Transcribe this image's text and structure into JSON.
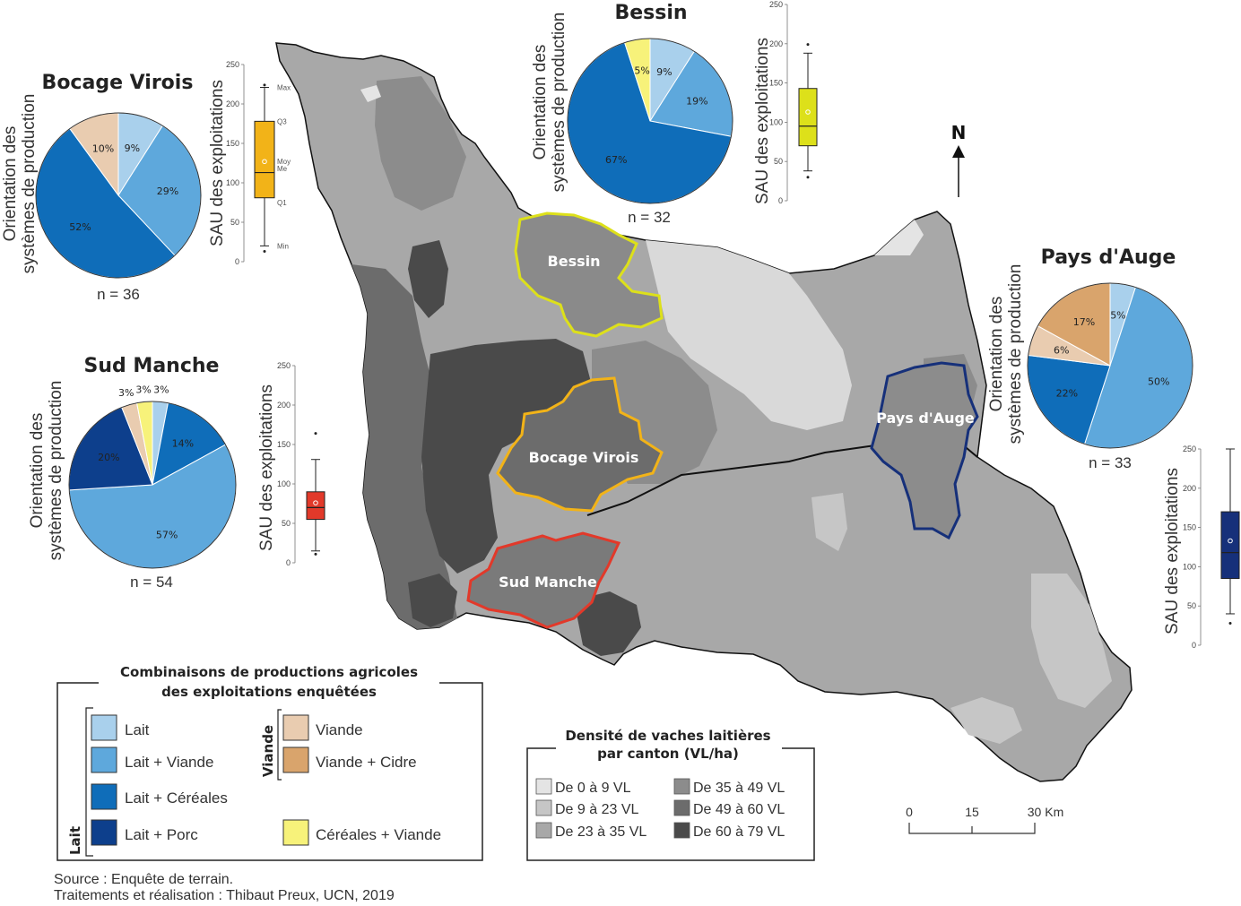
{
  "colors": {
    "lait": "#a9d0ec",
    "lait_viande": "#5ea8dc",
    "lait_cereales": "#0f6db9",
    "lait_porc": "#0d3f8c",
    "viande": "#e9ccb0",
    "viande_cidre": "#d9a46c",
    "cereales_viande": "#f7f27a",
    "dens_0_9": "#e4e4e4",
    "dens_9_23": "#c6c6c6",
    "dens_23_35": "#a8a8a8",
    "dens_35_49": "#8c8c8c",
    "dens_49_60": "#6c6c6c",
    "dens_60_79": "#4a4a4a"
  },
  "pie_axis_label_line1": "Orientation des",
  "pie_axis_label_line2": "systèmes de production",
  "box_axis_label": "SAU des exploitations",
  "box_ticks": [
    "0",
    "50",
    "100",
    "150",
    "200",
    "250"
  ],
  "box_stat_labels": {
    "max": "Max",
    "q3": "Q3",
    "moy": "Moy",
    "me": "Me",
    "q1": "Q1",
    "min": "Min"
  },
  "regions": {
    "bocage": {
      "title": "Bocage Virois",
      "n": "n = 36",
      "map_label": "Bocage Virois",
      "pie": [
        {
          "cat": "lait",
          "pct": 9,
          "label": "9%"
        },
        {
          "cat": "lait_viande",
          "pct": 29,
          "label": "29%"
        },
        {
          "cat": "lait_cereales",
          "pct": 52,
          "label": "52%"
        },
        {
          "cat": "viande",
          "pct": 10,
          "label": "10%"
        }
      ],
      "box": {
        "min": 20,
        "q1": 81,
        "median": 113,
        "mean": 127,
        "q3": 178,
        "max": 221,
        "outliers": [
          13,
          224
        ],
        "color": "#f2b318"
      }
    },
    "bessin": {
      "title": "Bessin",
      "n": "n = 32",
      "map_label": "Bessin",
      "pie": [
        {
          "cat": "lait",
          "pct": 9,
          "label": "9%"
        },
        {
          "cat": "lait_viande",
          "pct": 19,
          "label": "19%"
        },
        {
          "cat": "lait_cereales",
          "pct": 67,
          "label": "67%"
        },
        {
          "cat": "cereales_viande",
          "pct": 5,
          "label": "5%"
        }
      ],
      "box": {
        "min": 38,
        "q1": 70,
        "median": 95,
        "mean": 113,
        "q3": 143,
        "max": 188,
        "outliers": [
          30,
          199
        ],
        "color": "#dde01a"
      }
    },
    "sudmanche": {
      "title": "Sud Manche",
      "n": "n = 54",
      "map_label": "Sud Manche",
      "pie": [
        {
          "cat": "lait",
          "pct": 3,
          "label": "3%"
        },
        {
          "cat": "lait_cereales",
          "pct": 14,
          "label": "14%"
        },
        {
          "cat": "lait_viande",
          "pct": 57,
          "label": "57%"
        },
        {
          "cat": "lait_porc",
          "pct": 20,
          "label": "20%"
        },
        {
          "cat": "viande",
          "pct": 3,
          "label": "3%"
        },
        {
          "cat": "cereales_viande",
          "pct": 3,
          "label": "3%"
        }
      ],
      "box": {
        "min": 15,
        "q1": 55,
        "median": 70,
        "mean": 76,
        "q3": 90,
        "max": 131,
        "outliers": [
          11,
          164
        ],
        "color": "#e2392a"
      }
    },
    "paysdauge": {
      "title": "Pays d'Auge",
      "n": "n = 33",
      "map_label": "Pays d'Auge",
      "pie": [
        {
          "cat": "lait",
          "pct": 5,
          "label": "5%"
        },
        {
          "cat": "lait_viande",
          "pct": 50,
          "label": "50%"
        },
        {
          "cat": "lait_cereales",
          "pct": 22,
          "label": "22%"
        },
        {
          "cat": "viande",
          "pct": 6,
          "label": "6%"
        },
        {
          "cat": "viande_cidre",
          "pct": 17,
          "label": "17%"
        }
      ],
      "box": {
        "min": 40,
        "q1": 85,
        "median": 118,
        "mean": 133,
        "q3": 170,
        "max": 250,
        "outliers": [
          28
        ],
        "color": "#16307a"
      }
    }
  },
  "legend_prod": {
    "title_line1": "Combinaisons de productions agricoles",
    "title_line2": "des exploitations enquêtées",
    "group_lait": "Lait",
    "group_viande": "Viande",
    "items": [
      {
        "cat": "lait",
        "label": "Lait"
      },
      {
        "cat": "lait_viande",
        "label": "Lait + Viande"
      },
      {
        "cat": "lait_cereales",
        "label": "Lait + Céréales"
      },
      {
        "cat": "lait_porc",
        "label": "Lait + Porc"
      },
      {
        "cat": "viande",
        "label": "Viande"
      },
      {
        "cat": "viande_cidre",
        "label": "Viande + Cidre"
      },
      {
        "cat": "cereales_viande",
        "label": "Céréales + Viande"
      }
    ]
  },
  "legend_density": {
    "title_line1": "Densité de vaches laitières",
    "title_line2": "par canton (VL/ha)",
    "items": [
      {
        "key": "dens_0_9",
        "label": "De 0 à 9 VL"
      },
      {
        "key": "dens_9_23",
        "label": "De 9 à 23 VL"
      },
      {
        "key": "dens_23_35",
        "label": "De 23 à 35 VL"
      },
      {
        "key": "dens_35_49",
        "label": "De 35 à 49 VL"
      },
      {
        "key": "dens_49_60",
        "label": "De 49 à 60 VL"
      },
      {
        "key": "dens_60_79",
        "label": "De 60 à 79 VL"
      }
    ]
  },
  "scale": {
    "labels": [
      "0",
      "15",
      "30 Km"
    ]
  },
  "north": "N",
  "source_line1": "Source : Enquête de terrain.",
  "source_line2": "Traitements et réalisation : Thibaut Preux, UCN, 2019"
}
